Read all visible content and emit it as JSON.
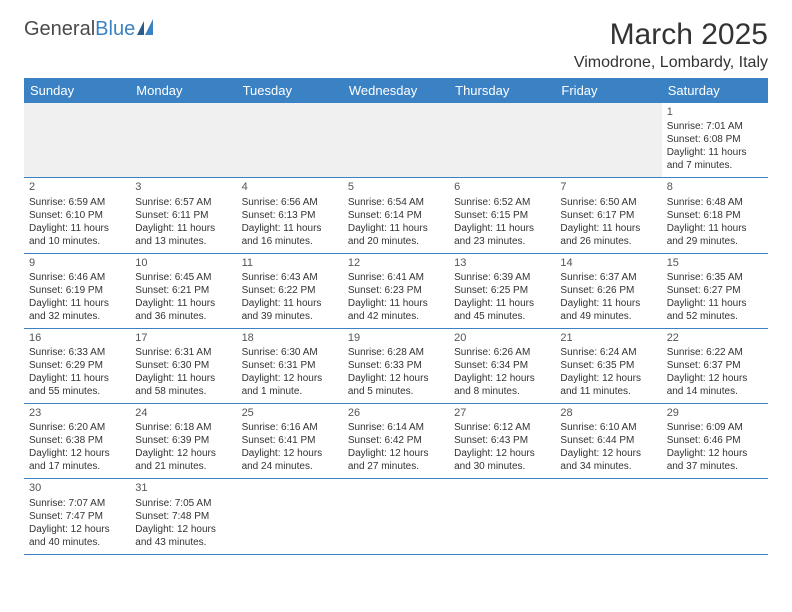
{
  "brand": {
    "part1": "General",
    "part2": "Blue"
  },
  "title": "March 2025",
  "location": "Vimodrone, Lombardy, Italy",
  "colors": {
    "header_bg": "#3b82c4",
    "header_text": "#ffffff",
    "cell_border": "#3b82c4",
    "page_bg": "#ffffff",
    "empty_bg": "#f0f0f0",
    "text": "#333333",
    "brand_blue": "#3b82c4",
    "brand_gray": "#4a4a4a"
  },
  "typography": {
    "title_fontsize": 30,
    "location_fontsize": 16,
    "dayheader_fontsize": 13,
    "cell_fontsize": 10
  },
  "day_headers": [
    "Sunday",
    "Monday",
    "Tuesday",
    "Wednesday",
    "Thursday",
    "Friday",
    "Saturday"
  ],
  "weeks": [
    [
      null,
      null,
      null,
      null,
      null,
      null,
      {
        "n": "1",
        "sr": "7:01 AM",
        "ss": "6:08 PM",
        "dl": "11 hours and 7 minutes."
      }
    ],
    [
      {
        "n": "2",
        "sr": "6:59 AM",
        "ss": "6:10 PM",
        "dl": "11 hours and 10 minutes."
      },
      {
        "n": "3",
        "sr": "6:57 AM",
        "ss": "6:11 PM",
        "dl": "11 hours and 13 minutes."
      },
      {
        "n": "4",
        "sr": "6:56 AM",
        "ss": "6:13 PM",
        "dl": "11 hours and 16 minutes."
      },
      {
        "n": "5",
        "sr": "6:54 AM",
        "ss": "6:14 PM",
        "dl": "11 hours and 20 minutes."
      },
      {
        "n": "6",
        "sr": "6:52 AM",
        "ss": "6:15 PM",
        "dl": "11 hours and 23 minutes."
      },
      {
        "n": "7",
        "sr": "6:50 AM",
        "ss": "6:17 PM",
        "dl": "11 hours and 26 minutes."
      },
      {
        "n": "8",
        "sr": "6:48 AM",
        "ss": "6:18 PM",
        "dl": "11 hours and 29 minutes."
      }
    ],
    [
      {
        "n": "9",
        "sr": "6:46 AM",
        "ss": "6:19 PM",
        "dl": "11 hours and 32 minutes."
      },
      {
        "n": "10",
        "sr": "6:45 AM",
        "ss": "6:21 PM",
        "dl": "11 hours and 36 minutes."
      },
      {
        "n": "11",
        "sr": "6:43 AM",
        "ss": "6:22 PM",
        "dl": "11 hours and 39 minutes."
      },
      {
        "n": "12",
        "sr": "6:41 AM",
        "ss": "6:23 PM",
        "dl": "11 hours and 42 minutes."
      },
      {
        "n": "13",
        "sr": "6:39 AM",
        "ss": "6:25 PM",
        "dl": "11 hours and 45 minutes."
      },
      {
        "n": "14",
        "sr": "6:37 AM",
        "ss": "6:26 PM",
        "dl": "11 hours and 49 minutes."
      },
      {
        "n": "15",
        "sr": "6:35 AM",
        "ss": "6:27 PM",
        "dl": "11 hours and 52 minutes."
      }
    ],
    [
      {
        "n": "16",
        "sr": "6:33 AM",
        "ss": "6:29 PM",
        "dl": "11 hours and 55 minutes."
      },
      {
        "n": "17",
        "sr": "6:31 AM",
        "ss": "6:30 PM",
        "dl": "11 hours and 58 minutes."
      },
      {
        "n": "18",
        "sr": "6:30 AM",
        "ss": "6:31 PM",
        "dl": "12 hours and 1 minute."
      },
      {
        "n": "19",
        "sr": "6:28 AM",
        "ss": "6:33 PM",
        "dl": "12 hours and 5 minutes."
      },
      {
        "n": "20",
        "sr": "6:26 AM",
        "ss": "6:34 PM",
        "dl": "12 hours and 8 minutes."
      },
      {
        "n": "21",
        "sr": "6:24 AM",
        "ss": "6:35 PM",
        "dl": "12 hours and 11 minutes."
      },
      {
        "n": "22",
        "sr": "6:22 AM",
        "ss": "6:37 PM",
        "dl": "12 hours and 14 minutes."
      }
    ],
    [
      {
        "n": "23",
        "sr": "6:20 AM",
        "ss": "6:38 PM",
        "dl": "12 hours and 17 minutes."
      },
      {
        "n": "24",
        "sr": "6:18 AM",
        "ss": "6:39 PM",
        "dl": "12 hours and 21 minutes."
      },
      {
        "n": "25",
        "sr": "6:16 AM",
        "ss": "6:41 PM",
        "dl": "12 hours and 24 minutes."
      },
      {
        "n": "26",
        "sr": "6:14 AM",
        "ss": "6:42 PM",
        "dl": "12 hours and 27 minutes."
      },
      {
        "n": "27",
        "sr": "6:12 AM",
        "ss": "6:43 PM",
        "dl": "12 hours and 30 minutes."
      },
      {
        "n": "28",
        "sr": "6:10 AM",
        "ss": "6:44 PM",
        "dl": "12 hours and 34 minutes."
      },
      {
        "n": "29",
        "sr": "6:09 AM",
        "ss": "6:46 PM",
        "dl": "12 hours and 37 minutes."
      }
    ],
    [
      {
        "n": "30",
        "sr": "7:07 AM",
        "ss": "7:47 PM",
        "dl": "12 hours and 40 minutes."
      },
      {
        "n": "31",
        "sr": "7:05 AM",
        "ss": "7:48 PM",
        "dl": "12 hours and 43 minutes."
      },
      null,
      null,
      null,
      null,
      null
    ]
  ],
  "labels": {
    "sunrise": "Sunrise:",
    "sunset": "Sunset:",
    "daylight": "Daylight:"
  }
}
